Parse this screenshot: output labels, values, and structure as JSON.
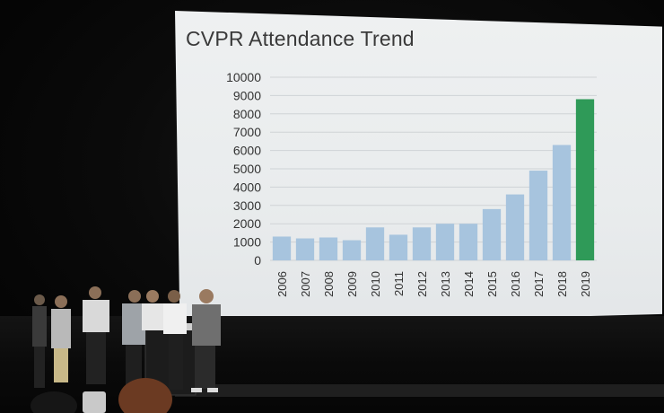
{
  "chart_data": {
    "type": "bar",
    "title": "CVPR Attendance Trend",
    "categories": [
      "2006",
      "2007",
      "2008",
      "2009",
      "2010",
      "2011",
      "2012",
      "2013",
      "2014",
      "2015",
      "2016",
      "2017",
      "2018",
      "2019"
    ],
    "values": [
      1300,
      1200,
      1250,
      1100,
      1800,
      1400,
      1800,
      2000,
      2000,
      2800,
      3600,
      4900,
      6300,
      8800
    ],
    "ylim": [
      0,
      10000
    ],
    "yticks": [
      0,
      1000,
      2000,
      3000,
      4000,
      5000,
      6000,
      7000,
      8000,
      9000,
      10000
    ],
    "grid": true,
    "legend": "none",
    "colors": {
      "default": "#a7c4de",
      "highlight": "#2f9a58"
    },
    "highlight_category": "2019"
  }
}
